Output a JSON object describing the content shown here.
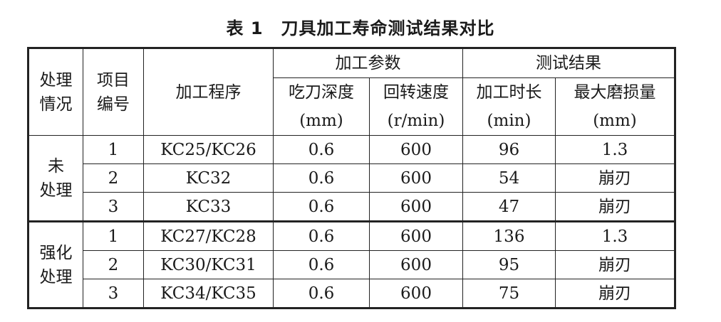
{
  "title": "表 1　刀具加工寿命测试结果对比",
  "table": {
    "header": {
      "treatment": [
        "处理",
        "情况"
      ],
      "item_no": [
        "项目",
        "编号"
      ],
      "process": "加工程序",
      "params": "加工参数",
      "results": "测试结果",
      "columns": [
        {
          "name": "吃刀深度",
          "unit": "(mm)"
        },
        {
          "name": "回转速度",
          "unit": "(r/min)"
        },
        {
          "name": "加工时长",
          "unit": "(min)"
        },
        {
          "name": "最大磨损量",
          "unit": "(mm)"
        }
      ]
    },
    "groups": [
      {
        "label": [
          "未",
          "处理"
        ],
        "rows": [
          [
            1,
            "KC25/KC26",
            0.6,
            600,
            96,
            1.3
          ],
          [
            2,
            "KC32",
            0.6,
            600,
            54,
            "崩刃"
          ],
          [
            3,
            "KC33",
            0.6,
            600,
            47,
            "崩刃"
          ]
        ]
      },
      {
        "label": [
          "强化",
          "处理"
        ],
        "rows": [
          [
            1,
            "KC27/KC28",
            0.6,
            600,
            136,
            1.3
          ],
          [
            2,
            "KC30/KC31",
            0.6,
            600,
            95,
            "崩刃"
          ],
          [
            3,
            "KC34/KC35",
            0.6,
            600,
            75,
            "崩刃"
          ]
        ]
      }
    ]
  }
}
